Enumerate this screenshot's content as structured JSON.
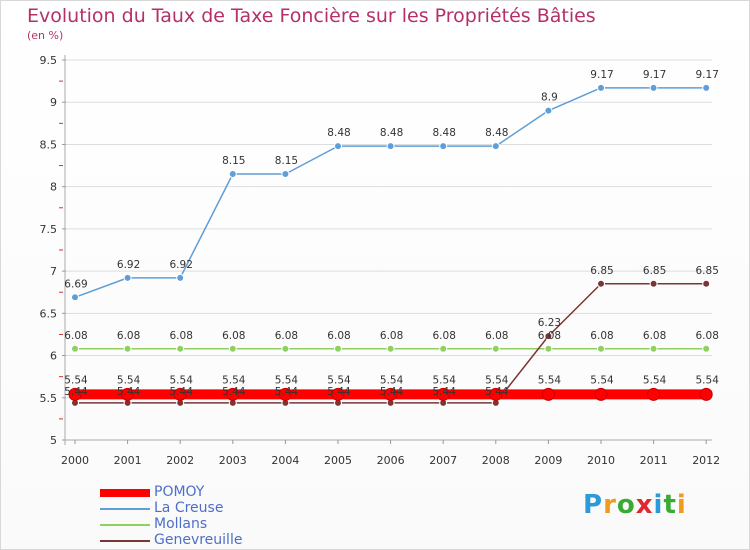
{
  "chart_data": {
    "type": "line",
    "title": "Evolution du Taux de Taxe Foncière sur les Propriétés Bâties",
    "subtitle": "(en %)",
    "x": [
      "2000",
      "2001",
      "2002",
      "2003",
      "2004",
      "2005",
      "2006",
      "2007",
      "2008",
      "2009",
      "2010",
      "2011",
      "2012"
    ],
    "ylim": [
      5,
      9.5
    ],
    "yticks": [
      "5",
      "5.5",
      "6",
      "6.5",
      "7",
      "7.5",
      "8",
      "8.5",
      "9",
      "9.5"
    ],
    "grid": true,
    "legend_position": "bottom-left",
    "series": [
      {
        "name": "POMOY",
        "color": "#ff0000",
        "values": [
          5.54,
          5.54,
          5.54,
          5.54,
          5.54,
          5.54,
          5.54,
          5.54,
          5.54,
          5.54,
          5.54,
          5.54,
          5.54
        ],
        "labels": [
          "5.54",
          "5.54",
          "5.54",
          "5.54",
          "5.54",
          "5.54",
          "5.54",
          "5.54",
          "5.54",
          "5.54",
          "5.54",
          "5.54",
          "5.54"
        ]
      },
      {
        "name": "La Creuse",
        "color": "#5f9ed6",
        "values": [
          6.69,
          6.92,
          6.92,
          8.15,
          8.15,
          8.48,
          8.48,
          8.48,
          8.48,
          8.9,
          9.17,
          9.17,
          9.17
        ],
        "labels": [
          "6.69",
          "6.92",
          "6.92",
          "8.15",
          "8.15",
          "8.48",
          "8.48",
          "8.48",
          "8.48",
          "8.9",
          "9.17",
          "9.17",
          "9.17"
        ]
      },
      {
        "name": "Mollans",
        "color": "#8fd060",
        "values": [
          6.08,
          6.08,
          6.08,
          6.08,
          6.08,
          6.08,
          6.08,
          6.08,
          6.08,
          6.08,
          6.08,
          6.08,
          6.08
        ],
        "labels": [
          "6.08",
          "6.08",
          "6.08",
          "6.08",
          "6.08",
          "6.08",
          "6.08",
          "6.08",
          "6.08",
          "6.08",
          "6.08",
          "6.08",
          "6.08"
        ]
      },
      {
        "name": "Genevreuille",
        "color": "#7a3535",
        "values": [
          5.44,
          5.44,
          5.44,
          5.44,
          5.44,
          5.44,
          5.44,
          5.44,
          5.44,
          6.23,
          6.85,
          6.85,
          6.85
        ],
        "labels": [
          "5.44",
          "5.44",
          "5.44",
          "5.44",
          "5.44",
          "5.44",
          "5.44",
          "5.44",
          "5.44",
          "6.23",
          "6.85",
          "6.85",
          "6.85"
        ]
      }
    ]
  },
  "logo": {
    "letters": [
      "P",
      "r",
      "o",
      "x",
      "i",
      "t",
      "i"
    ],
    "colors": [
      "#2a9ad8",
      "#f39a1c",
      "#3aaa35",
      "#e2282e",
      "#2a9ad8",
      "#3aaa35",
      "#f39a1c"
    ]
  }
}
